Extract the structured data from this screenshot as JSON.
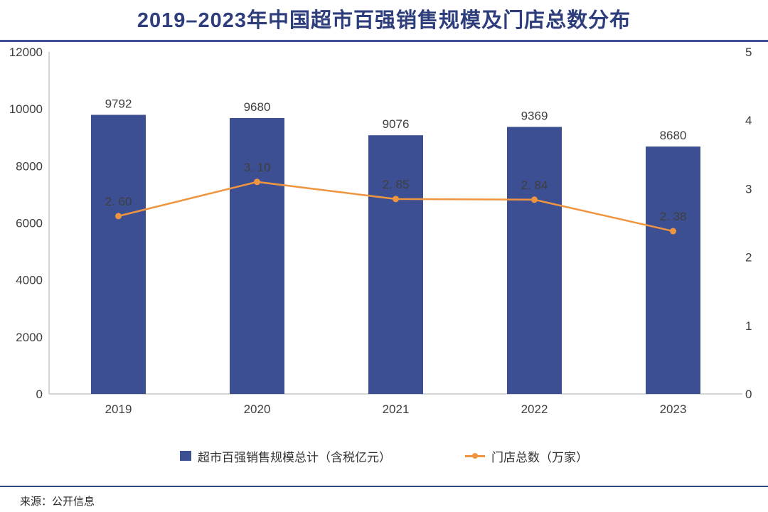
{
  "title": "2019–2023年中国超市百强销售规模及门店总数分布",
  "source": "来源：公开信息",
  "colors": {
    "bar": "#3c4f92",
    "line": "#ef9540",
    "title": "#2e3e7c",
    "top_rule": "#3c5098",
    "bottom_rule": "#2e4582",
    "axis": "#c9c9c9",
    "tick_label": "#3f3f3f",
    "data_label": "#3f3f3f"
  },
  "legend": [
    {
      "label": "超市百强销售规模总计（含税亿元）"
    },
    {
      "label": "门店总数（万家）"
    }
  ],
  "chart_data": {
    "type": "bar+line combo",
    "categories": [
      "2019",
      "2020",
      "2021",
      "2022",
      "2023"
    ],
    "series": [
      {
        "name": "超市百强销售规模总计（含税亿元）",
        "type": "bar",
        "axis": "left",
        "values": [
          9792,
          9680,
          9076,
          9369,
          8680
        ],
        "labels": [
          "9792",
          "9680",
          "9076",
          "9369",
          "8680"
        ]
      },
      {
        "name": "门店总数（万家）",
        "type": "line",
        "axis": "right",
        "values": [
          2.6,
          3.1,
          2.85,
          2.84,
          2.38
        ],
        "labels": [
          "2. 60",
          "3. 10",
          "2. 85",
          "2. 84",
          "2. 38"
        ]
      }
    ],
    "left_axis": {
      "min": 0,
      "max": 12000,
      "ticks": [
        0,
        2000,
        4000,
        6000,
        8000,
        10000,
        12000
      ]
    },
    "right_axis": {
      "min": 0,
      "max": 5,
      "ticks": [
        0,
        1,
        2,
        3,
        4,
        5
      ]
    },
    "grid": false,
    "legend_position": "bottom"
  }
}
